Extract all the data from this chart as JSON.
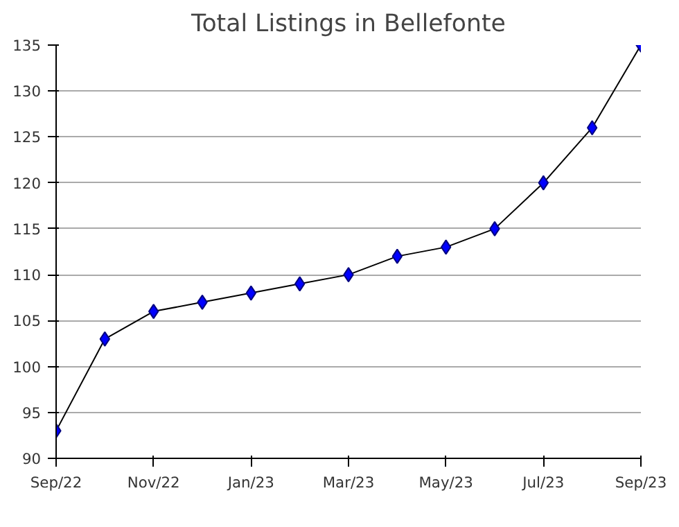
{
  "chart_data": {
    "type": "line",
    "title": "Total Listings in Bellefonte",
    "x": [
      "2022-09",
      "2022-10",
      "2022-11",
      "2022-12",
      "2023-01",
      "2023-02",
      "2023-03",
      "2023-04",
      "2023-05",
      "2023-06",
      "2023-07",
      "2023-08",
      "2023-09"
    ],
    "series": [
      {
        "color": "#0000ff",
        "values": [
          93,
          103,
          106,
          107,
          108,
          109,
          110,
          112,
          113,
          115,
          120,
          126,
          135
        ]
      }
    ],
    "xlim": [
      "2022-09",
      "2023-09"
    ],
    "xticks": [
      {
        "value": "2022-09",
        "label": "Sep/22"
      },
      {
        "value": "2022-11",
        "label": "Nov/22"
      },
      {
        "value": "2023-01",
        "label": "Jan/23"
      },
      {
        "value": "2023-03",
        "label": "Mar/23"
      },
      {
        "value": "2023-05",
        "label": "May/23"
      },
      {
        "value": "2023-07",
        "label": "Jul/23"
      },
      {
        "value": "2023-09",
        "label": "Sep/23"
      }
    ],
    "ylim": [
      90,
      135
    ],
    "yticks": [
      90,
      95,
      100,
      105,
      110,
      115,
      120,
      125,
      130,
      135
    ],
    "grid": "y",
    "marker": "diamond",
    "line_style": "solid"
  }
}
